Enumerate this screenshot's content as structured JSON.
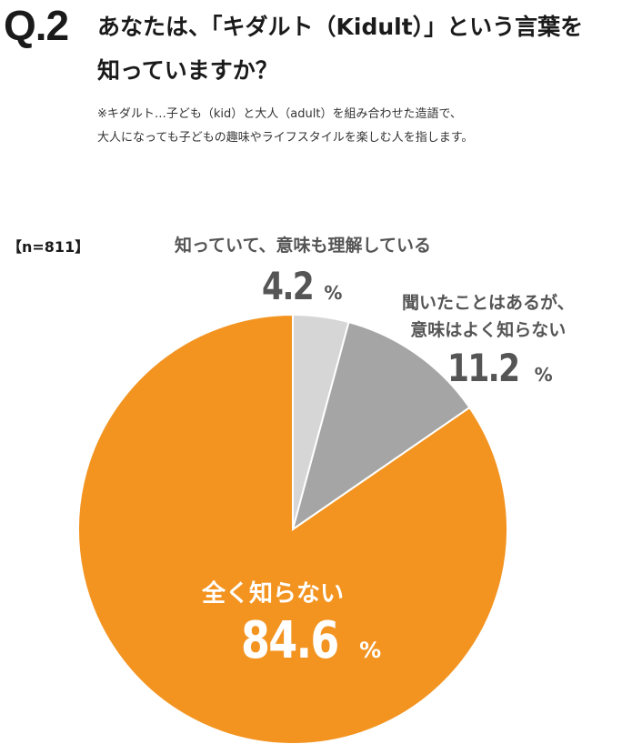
{
  "question": {
    "number": "Q.2",
    "title_lines": [
      "あなたは、「キダルト（Kidult）」という言葉を",
      "知っていますか？"
    ],
    "note_lines": [
      "※キダルト…子ども（kid）と大人（adult）を組み合わせた造語で、",
      "大人になっても子どもの趣味やライフスタイルを楽しむ人を指します。"
    ]
  },
  "sample_size": "【n=811】",
  "chart_data": {
    "type": "pie",
    "start": "12 o'clock, clockwise",
    "slices": [
      {
        "label": "知っていて、意味も理解している",
        "label_lines": [
          "知っていて、意味も理解している"
        ],
        "value": 4.2,
        "display": "4.2",
        "color": "#d6d6d6"
      },
      {
        "label": "聞いたことはあるが、意味はよく知らない",
        "label_lines": [
          "聞いたことはあるが、",
          "意味はよく知らない"
        ],
        "value": 11.2,
        "display": "11.2",
        "color": "#a5a5a5"
      },
      {
        "label": "全く知らない",
        "label_lines": [
          "全く知らない"
        ],
        "value": 84.6,
        "display": "84.6",
        "color": "#f39421"
      }
    ],
    "unit": "%"
  }
}
